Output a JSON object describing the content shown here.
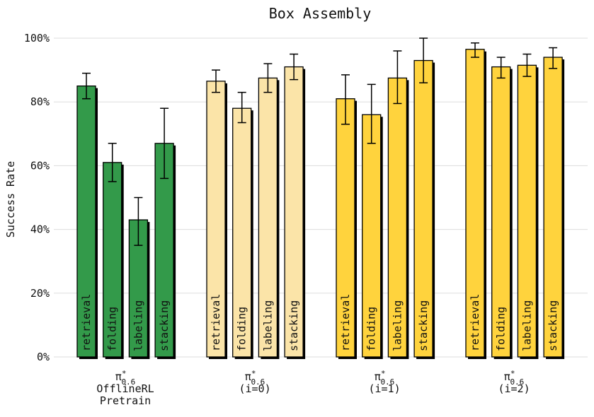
{
  "chart_data": {
    "type": "bar",
    "title": "Box Assembly",
    "ylabel": "Success Rate",
    "xlabel": "",
    "ylim": [
      0,
      100
    ],
    "yticks": [
      "0%",
      "20%",
      "40%",
      "60%",
      "80%",
      "100%"
    ],
    "grid": true,
    "groups": [
      {
        "label_lines": [
          "π*0.6",
          "OfflineRL",
          "Pretrain"
        ],
        "color": "#339a4a",
        "bars": [
          {
            "task": "retrieval",
            "value": 85,
            "err_low": 81,
            "err_high": 89
          },
          {
            "task": "folding",
            "value": 61,
            "err_low": 55,
            "err_high": 67
          },
          {
            "task": "labeling",
            "value": 43,
            "err_low": 35,
            "err_high": 50
          },
          {
            "task": "stacking",
            "value": 67,
            "err_low": 56,
            "err_high": 78
          }
        ]
      },
      {
        "label_lines": [
          "π*0.6",
          "(i=0)"
        ],
        "color": "#fbe4a8",
        "bars": [
          {
            "task": "retrieval",
            "value": 86.5,
            "err_low": 83,
            "err_high": 90
          },
          {
            "task": "folding",
            "value": 78,
            "err_low": 73.5,
            "err_high": 83
          },
          {
            "task": "labeling",
            "value": 87.5,
            "err_low": 83,
            "err_high": 92
          },
          {
            "task": "stacking",
            "value": 91,
            "err_low": 87,
            "err_high": 95
          }
        ]
      },
      {
        "label_lines": [
          "π*0.6",
          "(i=1)"
        ],
        "color": "#ffd33d",
        "bars": [
          {
            "task": "retrieval",
            "value": 81,
            "err_low": 73,
            "err_high": 88.5
          },
          {
            "task": "folding",
            "value": 76,
            "err_low": 67,
            "err_high": 85.5
          },
          {
            "task": "labeling",
            "value": 87.5,
            "err_low": 79.5,
            "err_high": 96
          },
          {
            "task": "stacking",
            "value": 93,
            "err_low": 86,
            "err_high": 100
          }
        ]
      },
      {
        "label_lines": [
          "π*0.6",
          "(i=2)"
        ],
        "color": "#ffd33d",
        "bars": [
          {
            "task": "retrieval",
            "value": 96.5,
            "err_low": 94,
            "err_high": 98.5
          },
          {
            "task": "folding",
            "value": 91,
            "err_low": 87.5,
            "err_high": 94
          },
          {
            "task": "labeling",
            "value": 91.5,
            "err_low": 88,
            "err_high": 95
          },
          {
            "task": "stacking",
            "value": 94,
            "err_low": 90.5,
            "err_high": 97
          }
        ]
      }
    ]
  }
}
